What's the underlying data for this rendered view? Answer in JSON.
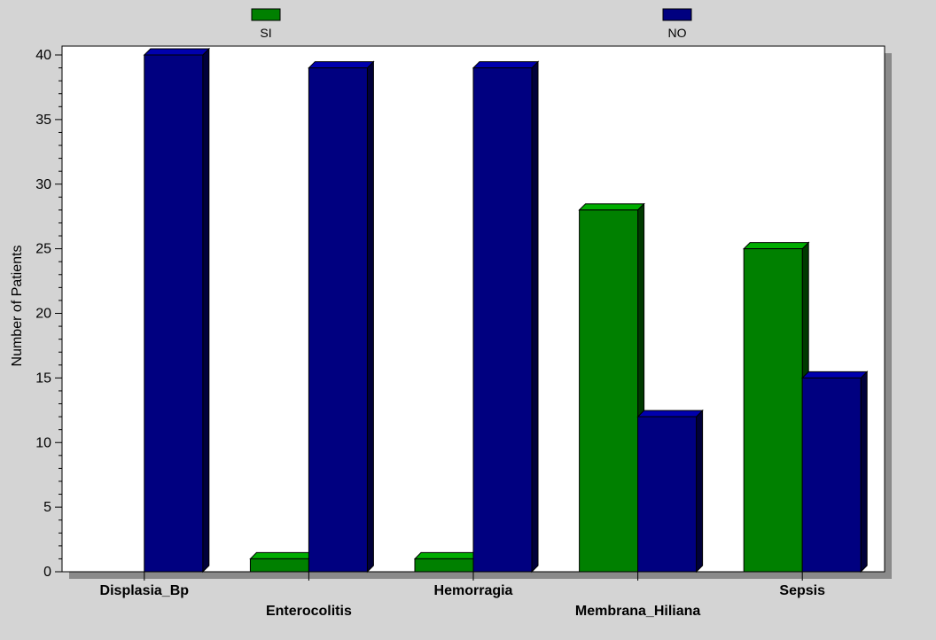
{
  "chart_data": {
    "type": "bar",
    "title": "",
    "xlabel": "",
    "ylabel": "Number of Patients",
    "categories": [
      "Displasia_Bp",
      "Enterocolitis",
      "Hemorragia",
      "Membrana_Hiliana",
      "Sepsis"
    ],
    "series": [
      {
        "name": "SI",
        "color": "#008000",
        "values": [
          0,
          1,
          1,
          28,
          25
        ]
      },
      {
        "name": "NO",
        "color": "#000080",
        "values": [
          40,
          39,
          39,
          12,
          15
        ]
      }
    ],
    "ylim": [
      0,
      40
    ],
    "yticks": [
      "0",
      "5",
      "10",
      "15",
      "20",
      "25",
      "30",
      "35",
      "40"
    ],
    "grid": false,
    "legend_position": "top",
    "bar_style": "3d"
  }
}
